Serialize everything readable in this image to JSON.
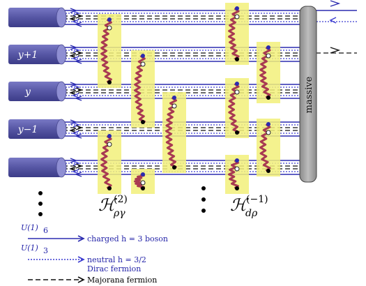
{
  "wire_labels": [
    "",
    "y+1",
    "y",
    "y−1",
    ""
  ],
  "ellipsis_symbol": "⋮",
  "massive_label": "massive",
  "operators": {
    "rho_gamma": {
      "symbol": "ℋ",
      "superscript": "(2)",
      "subscript": "ργ"
    },
    "d_rho": {
      "symbol": "ℋ",
      "superscript": "(−1)",
      "subscript": "dρ"
    }
  },
  "legend": {
    "charged_group": "U(1)",
    "charged_group_sub": "6",
    "charged_text": "charged h = 3 boson",
    "neutral_group": "U(1)",
    "neutral_group_sub": "3",
    "neutral_text": "neutral h = 3/2",
    "neutral_text2": "Dirac fermion",
    "majorana_text": "Majorana fermion"
  },
  "colors": {
    "cylinder": "#5a5aa8",
    "charged_line": "#2b2bb0",
    "neutral_line": "#3a3ad0",
    "majorana_line": "#111111",
    "highlight": "#f2f07a",
    "spring": "#a83a52",
    "massive_box": "#9e9e9e"
  }
}
